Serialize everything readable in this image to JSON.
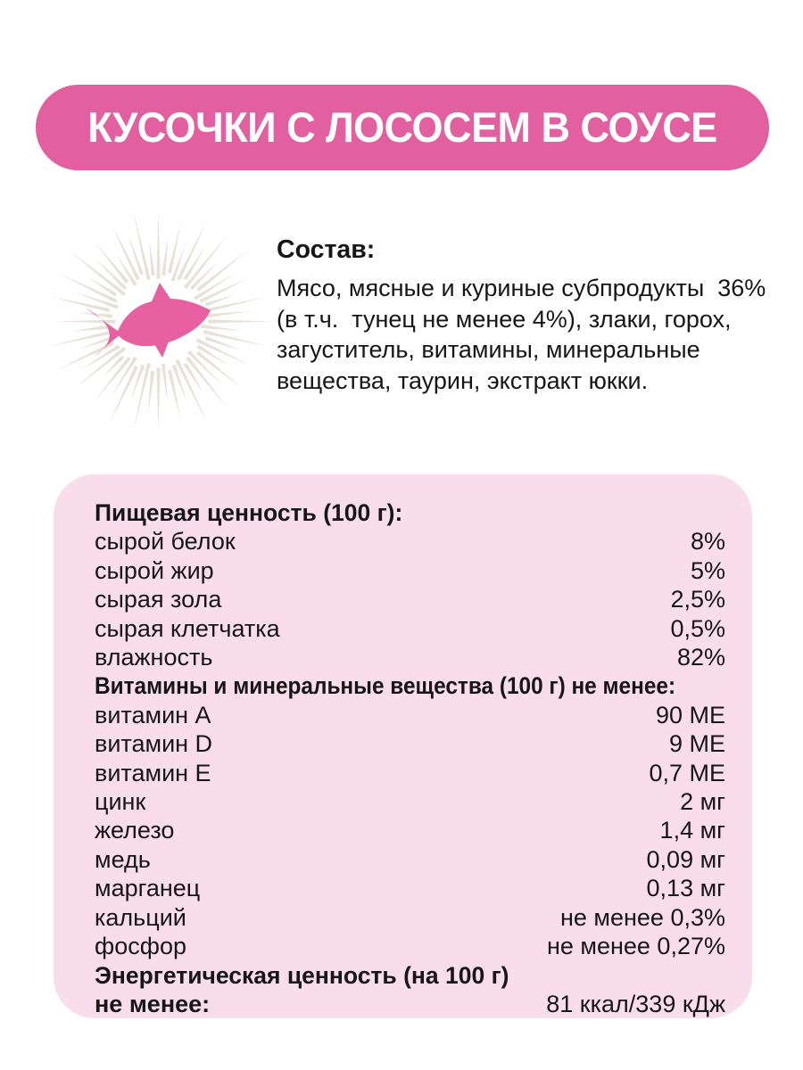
{
  "theme": {
    "brand_pink": "#e2609f",
    "fish_pink": "#e7609f",
    "rays_beige": "#e8e1d8",
    "card_pink": "#f9ddeb",
    "text_dark": "#161616",
    "page_bg": "#ffffff"
  },
  "header": {
    "title": "КУСОЧКИ С ЛОСОСЕМ В СОУСЕ"
  },
  "composition": {
    "heading": "Состав:",
    "text": "Мясо, мясные и куриные субпродукты  36%\n(в т.ч.  тунец не менее 4%), злаки, горох,\nзагуститель, витамины, минеральные\nвещества, таурин, экстракт юкки."
  },
  "illustration": {
    "icon": "fish-in-sunburst"
  },
  "nutrition": {
    "items": [
      {
        "type": "header",
        "label": "Пищевая ценность (100 г):"
      },
      {
        "type": "row",
        "label": "сырой белок",
        "value": "8%"
      },
      {
        "type": "row",
        "label": "сырой жир",
        "value": "5%"
      },
      {
        "type": "row",
        "label": "сырая зола",
        "value": "2,5%"
      },
      {
        "type": "row",
        "label": "сырая клетчатка",
        "value": "0,5%"
      },
      {
        "type": "row",
        "label": "влажность",
        "value": "82%"
      },
      {
        "type": "header",
        "label": "Витамины и минеральные вещества (100 г) не менее:"
      },
      {
        "type": "row",
        "label": "витамин A",
        "value": "90 МЕ"
      },
      {
        "type": "row",
        "label": "витамин D",
        "value": "9 МЕ"
      },
      {
        "type": "row",
        "label": "витамин E",
        "value": "0,7 МЕ"
      },
      {
        "type": "row",
        "label": "цинк",
        "value": "2 мг"
      },
      {
        "type": "row",
        "label": "железо",
        "value": "1,4 мг"
      },
      {
        "type": "row",
        "label": "медь",
        "value": "0,09 мг"
      },
      {
        "type": "row",
        "label": "марганец",
        "value": "0,13 мг"
      },
      {
        "type": "row",
        "label": "кальций",
        "value": "не менее 0,3%"
      },
      {
        "type": "row",
        "label": "фосфор",
        "value": "не менее 0,27%"
      },
      {
        "type": "header",
        "label": "Энергетическая ценность (на 100 г)"
      },
      {
        "type": "row-bold",
        "label": "не менее:",
        "value": "81 ккал/339 кДж"
      }
    ]
  }
}
